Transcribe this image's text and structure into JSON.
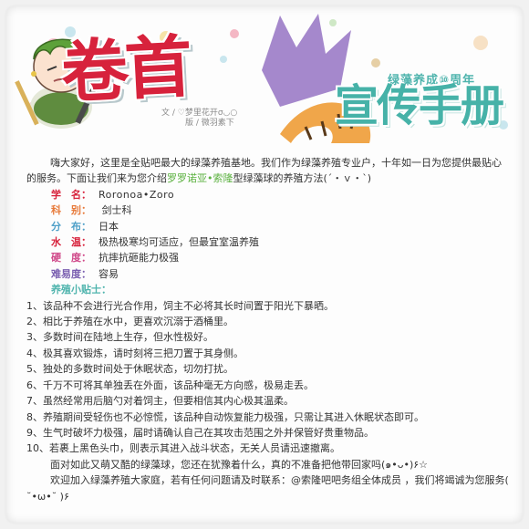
{
  "header": {
    "title_main": "卷首",
    "subtitle_small": "绿藻养成⑩周年",
    "subtitle_big": "宣传手册",
    "credit_text": "文 / ♡梦里花开σ◡○",
    "credit_layout": "版 / 微羽素下"
  },
  "intro": {
    "paragraph_start": "嗨大家好，这里是全贴吧最大的绿藻养殖基地。我们作为绿藻养殖专业户，十年如一日为您提供最贴心的服务。下面让我们来为您介绍",
    "highlight_name": "罗罗诺亚•索隆",
    "paragraph_end": "型绿藻球的养殖方法(´・ｖ・`)"
  },
  "fields": [
    {
      "label": "学　名：",
      "value": "Roronoa•Zoro",
      "color": "#d7223c"
    },
    {
      "label": "科　别：",
      "value": " 剑士科",
      "color": "#e77a3a"
    },
    {
      "label": "分　布：",
      "value": "日本",
      "color": "#4fa0c8"
    },
    {
      "label": "水　温：",
      "value": "极热极寒均可适应，但最宜室温养殖",
      "color": "#d7223c"
    },
    {
      "label": "硬　度：",
      "value": "抗摔抗砸能力极强",
      "color": "#d04a8a"
    },
    {
      "label": "难易度：",
      "value": "容易",
      "color": "#7a5fb0"
    }
  ],
  "tips_title": "养殖小贴士：",
  "tips": [
    "1、该品种不会进行光合作用，饲主不必将其长时间置于阳光下暴晒。",
    "2、相比于养殖在水中，更喜欢沉溺于酒桶里。",
    "3、多数时间在陆地上生存，但水性极好。",
    "4、极其喜欢锻炼，请时刻将三把刀置于其身侧。",
    "5、独处的多数时间处于休眠状态，切勿打扰。",
    "6、千万不可将其单独丢在外面，该品种毫无方向感，极易走丢。",
    "7、虽然经常用后脑勺对着饲主，但要相信其内心极其温柔。",
    "8、养殖期间受轻伤也不必惊慌，该品种自动恢复能力极强，只需让其进入休眠状态即可。",
    "9、生气时破坏力极强，届时请确认自己在其攻击范围之外并保管好贵重物品。",
    "10、若裹上黑色头巾，则表示其进入战斗状态，无关人员请迅速撤离。"
  ],
  "closing": [
    "面对如此又萌又酷的绿藻球，您还在犹豫着什么，真的不准备把他带回家吗(๑•ᴗ•)۶☆",
    "欢迎加入绿藻养殖大家庭，若有任何问题请及时联系：@索隆吧吧务组全体成员 ，我们将竭诚为您服务( ˘•ω•˘ )۶"
  ]
}
